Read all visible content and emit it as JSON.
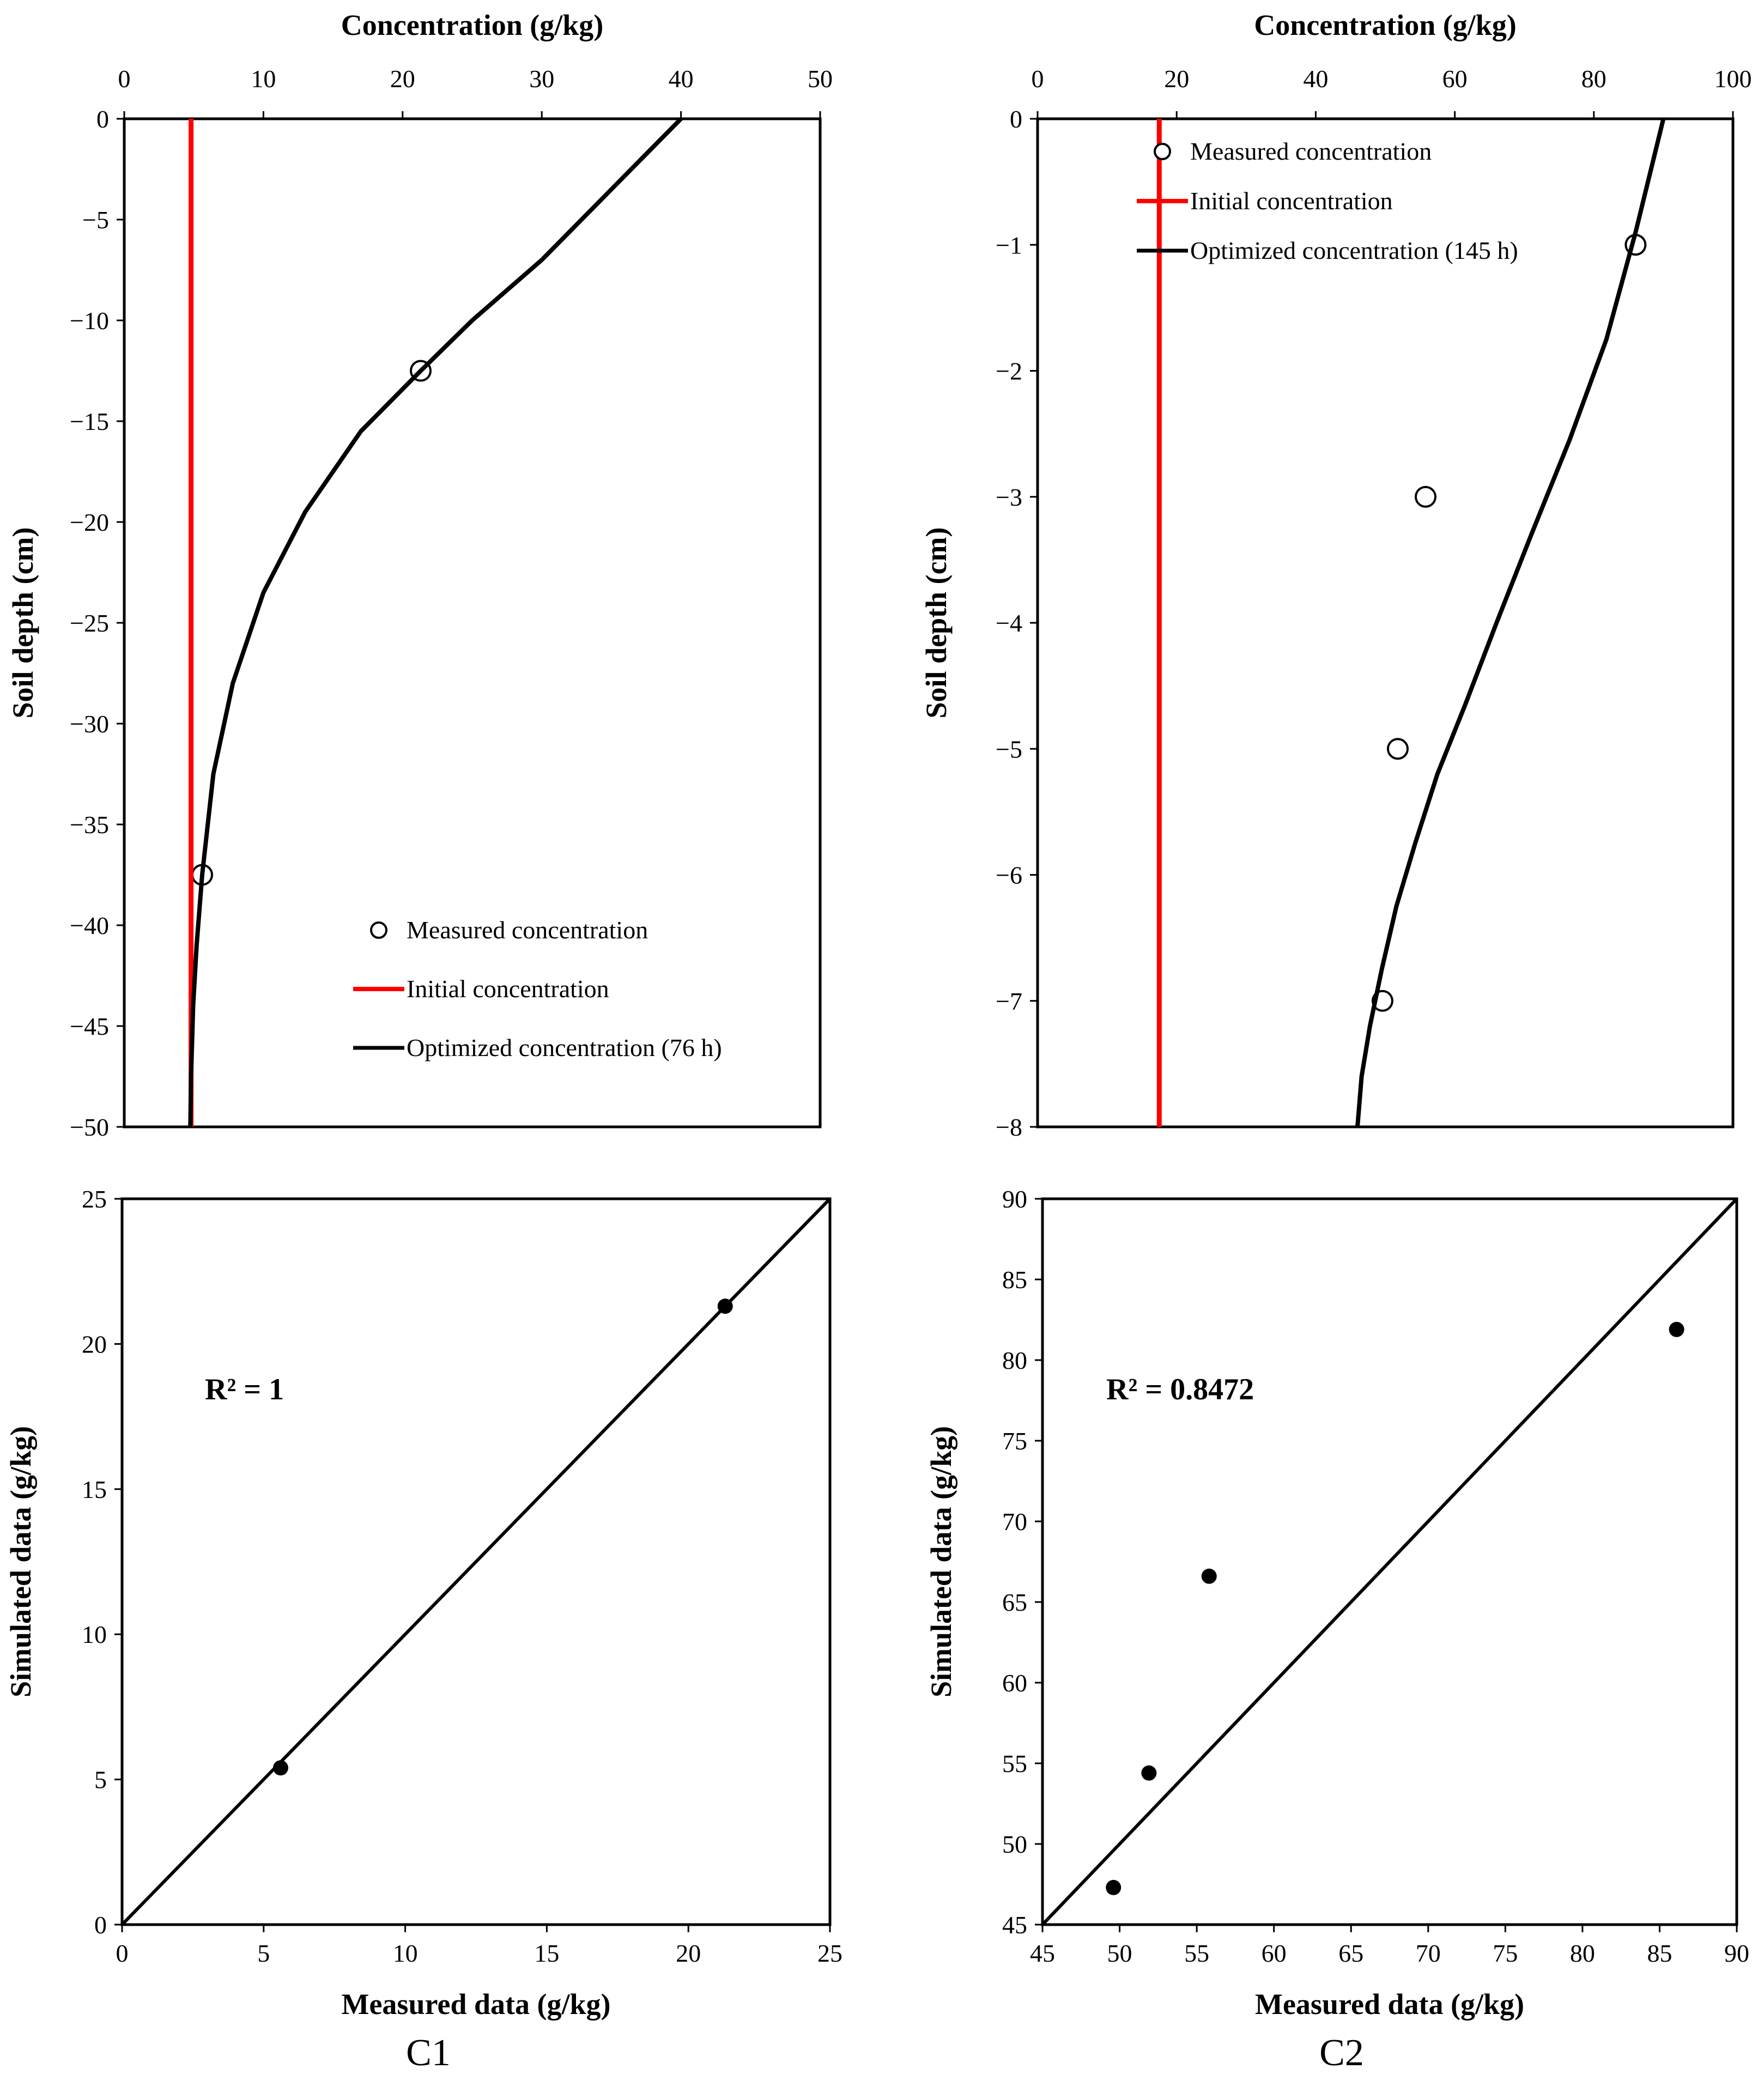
{
  "chart_data": [
    {
      "id": "c1_profile",
      "type": "line",
      "xlabel": "Concentration (g/kg)",
      "ylabel": "Soil depth (cm)",
      "xlim": [
        0,
        50
      ],
      "ylim": [
        -50,
        0
      ],
      "xticks": [
        0,
        10,
        20,
        30,
        40,
        50
      ],
      "yticks": [
        0,
        -5,
        -10,
        -15,
        -20,
        -25,
        -30,
        -35,
        -40,
        -45,
        -50
      ],
      "xticks_top": true,
      "legend_position": "bottom-right",
      "series": [
        {
          "name": "Measured concentration",
          "kind": "scatter",
          "marker": "open-circle",
          "color": "#000000",
          "x": [
            21.3,
            5.6
          ],
          "y": [
            -12.5,
            -37.5
          ]
        },
        {
          "name": "Initial concentration",
          "kind": "line",
          "color": "#ff0000",
          "x": [
            4.8,
            4.8
          ],
          "y": [
            0,
            -50
          ]
        },
        {
          "name": "Optimized concentration (76 h)",
          "kind": "line",
          "color": "#000000",
          "x": [
            40.0,
            35.0,
            30.0,
            25.0,
            21.3,
            17.0,
            13.0,
            10.0,
            7.8,
            6.4,
            5.6,
            5.2,
            4.95,
            4.8,
            4.75
          ],
          "y": [
            0,
            -3.5,
            -7.0,
            -10.0,
            -12.5,
            -15.5,
            -19.5,
            -23.5,
            -28.0,
            -32.5,
            -37.5,
            -41.0,
            -44.0,
            -47.5,
            -50
          ]
        }
      ]
    },
    {
      "id": "c2_profile",
      "type": "line",
      "xlabel": "Concentration (g/kg)",
      "ylabel": "Soil depth (cm)",
      "xlim": [
        0,
        100
      ],
      "ylim": [
        -8,
        0
      ],
      "xticks": [
        0,
        20,
        40,
        60,
        80,
        100
      ],
      "yticks": [
        0,
        -1,
        -2,
        -3,
        -4,
        -5,
        -6,
        -7,
        -8
      ],
      "xticks_top": true,
      "legend_position": "top-left",
      "series": [
        {
          "name": "Measured concentration",
          "kind": "scatter",
          "marker": "open-circle",
          "color": "#000000",
          "x": [
            86.0,
            55.8,
            51.8,
            49.6
          ],
          "y": [
            -1,
            -3,
            -5,
            -7
          ]
        },
        {
          "name": "Initial concentration",
          "kind": "line",
          "color": "#ff0000",
          "x": [
            17.5,
            17.5
          ],
          "y": [
            0,
            -8
          ]
        },
        {
          "name": "Optimized concentration (145 h)",
          "kind": "line",
          "color": "#000000",
          "x": [
            90.0,
            86.0,
            81.8,
            76.5,
            71.0,
            66.0,
            61.5,
            57.5,
            54.3,
            51.6,
            49.5,
            47.8,
            46.6,
            46.0
          ],
          "y": [
            0,
            -0.9,
            -1.75,
            -2.55,
            -3.3,
            -4.0,
            -4.65,
            -5.2,
            -5.75,
            -6.25,
            -6.75,
            -7.2,
            -7.6,
            -8.0
          ]
        }
      ]
    },
    {
      "id": "c1_scatter",
      "type": "scatter",
      "xlabel": "Measured data (g/kg)",
      "ylabel": "Simulated data (g/kg)",
      "xlim": [
        0,
        25
      ],
      "ylim": [
        0,
        25
      ],
      "xticks": [
        0,
        5,
        10,
        15,
        20,
        25
      ],
      "yticks": [
        0,
        5,
        10,
        15,
        20,
        25
      ],
      "annotation": "R² = 1",
      "reference_line": {
        "x": [
          0,
          25
        ],
        "y": [
          0,
          25
        ]
      },
      "points": {
        "x": [
          5.6,
          21.3
        ],
        "y": [
          5.4,
          21.3
        ]
      }
    },
    {
      "id": "c2_scatter",
      "type": "scatter",
      "xlabel": "Measured data (g/kg)",
      "ylabel": "Simulated data (g/kg)",
      "xlim": [
        45,
        90
      ],
      "ylim": [
        45,
        90
      ],
      "xticks": [
        45,
        50,
        55,
        60,
        65,
        70,
        75,
        80,
        85,
        90
      ],
      "yticks": [
        45,
        50,
        55,
        60,
        65,
        70,
        75,
        80,
        85,
        90
      ],
      "annotation": "R² = 0.8472",
      "reference_line": {
        "x": [
          45,
          90
        ],
        "y": [
          45,
          90
        ]
      },
      "points": {
        "x": [
          49.6,
          51.9,
          55.8,
          86.1
        ],
        "y": [
          47.3,
          54.4,
          66.6,
          81.9
        ]
      }
    }
  ],
  "panel_labels": [
    "C1",
    "C2"
  ]
}
